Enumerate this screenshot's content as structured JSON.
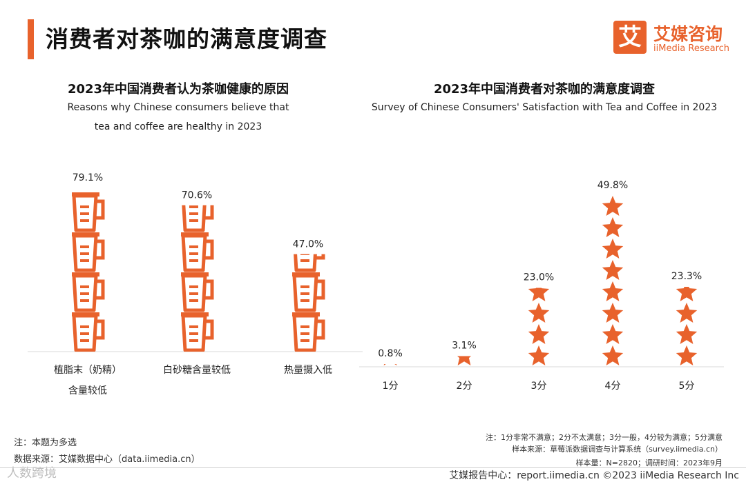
{
  "header": {
    "title": "消费者对茶咖的满意度调查"
  },
  "logo": {
    "mark": "艾",
    "name_cn": "艾媒咨询",
    "name_en": "iiMedia Research"
  },
  "chart_left": {
    "title": "2023年中国消费者认为茶咖健康的原因",
    "subtitle_line1": "Reasons why Chinese consumers believe that",
    "subtitle_line2": "tea and coffee are healthy in 2023"
  },
  "chart_right": {
    "title": "2023年中国消费者对茶咖的满意度调查",
    "subtitle": "Survey of Chinese Consumers' Satisfaction with Tea and Coffee in 2023"
  },
  "chart_data": [
    {
      "type": "bar",
      "pictogram": "cup-icon",
      "title": "2023年中国消费者认为茶咖健康的原因",
      "categories": [
        [
          "植脂末（奶精）",
          "含量较低"
        ],
        [
          "白砂糖含量较低"
        ],
        [
          "热量摄入低"
        ]
      ],
      "values": [
        79.1,
        70.6,
        47.0
      ],
      "labels": [
        "79.1%",
        "70.6%",
        "47.0%"
      ],
      "unit": "%",
      "ylim": [
        0,
        100
      ],
      "color": "#e8622c"
    },
    {
      "type": "bar",
      "pictogram": "star-icon",
      "title": "2023年中国消费者对茶咖的满意度调查",
      "categories": [
        "1分",
        "2分",
        "3分",
        "4分",
        "5分"
      ],
      "values": [
        0.8,
        3.1,
        23.0,
        49.8,
        23.3
      ],
      "labels": [
        "0.8%",
        "3.1%",
        "23.0%",
        "49.8%",
        "23.3%"
      ],
      "unit": "%",
      "ylim": [
        0,
        50
      ],
      "color": "#e8622c"
    }
  ],
  "notes": {
    "left_line1": "注：本题为多选",
    "left_line2": "数据来源：艾媒数据中心（data.iimedia.cn）",
    "right_line1": "注：1分非常不满意；2分不太满意；3分一般，4分较为满意；5分满意",
    "right_line2": "样本来源：草莓派数据调查与计算系统（survey.iimedia.cn）",
    "right_line3": "样本量：N=2820；调研时间：2023年9月"
  },
  "footer": {
    "text": "艾媒报告中心：report.iimedia.cn   ©2023  iiMedia Research  Inc"
  },
  "watermark": {
    "text": "人数跨境"
  }
}
